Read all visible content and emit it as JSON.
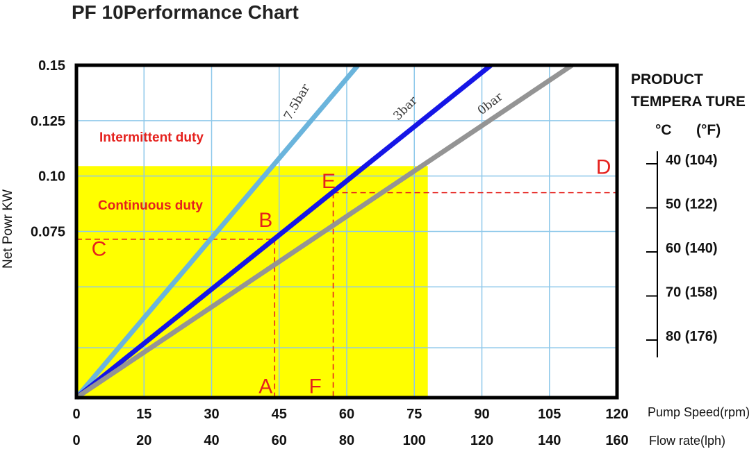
{
  "chart_data": {
    "type": "line",
    "title": "PF 10Performance Chart",
    "ylabel": "Net Powr KW",
    "x_label": "Pump Speed(rpm)",
    "x2_label": "Flow rate(lph)",
    "xlim": [
      0,
      120
    ],
    "ylim": [
      0,
      0.15
    ],
    "x_ticks": [
      "0",
      "15",
      "30",
      "45",
      "60",
      "75",
      "90",
      "105",
      "120"
    ],
    "x2_ticks": [
      "0",
      "20",
      "40",
      "60",
      "80",
      "100",
      "120",
      "140",
      "160"
    ],
    "y_ticks": [
      {
        "label": "0.15",
        "value": 0.15
      },
      {
        "label": "0.125",
        "value": 0.125
      },
      {
        "label": "0.10",
        "value": 0.1
      },
      {
        "label": "0.075",
        "value": 0.075
      }
    ],
    "grid": true,
    "regions": {
      "continuous": {
        "label": "Continuous duty",
        "x_max": 78,
        "y_max": 0.1045,
        "color": "#ffff00"
      },
      "intermittent": {
        "label": "Intermittent duty"
      }
    },
    "series": [
      {
        "name": "7.5bar",
        "color": "#6ab4dc",
        "points": [
          [
            0,
            0
          ],
          [
            62.5,
            0.15
          ]
        ]
      },
      {
        "name": "3bar",
        "color": "#1515e6",
        "points": [
          [
            0,
            0
          ],
          [
            92,
            0.15
          ]
        ]
      },
      {
        "name": "0bar",
        "color": "#949494",
        "points": [
          [
            0,
            0
          ],
          [
            110,
            0.15
          ]
        ]
      }
    ],
    "guides": [
      {
        "from": [
          0,
          0.0715
        ],
        "to": [
          44,
          0.0715
        ]
      },
      {
        "from": [
          44,
          0.0715
        ],
        "to": [
          44,
          0
        ]
      },
      {
        "from": [
          57,
          0.0925
        ],
        "to": [
          120,
          0.0925
        ]
      },
      {
        "from": [
          57,
          0.0925
        ],
        "to": [
          57,
          0
        ]
      }
    ],
    "points": [
      {
        "label": "A",
        "x": 42,
        "y": 0.002
      },
      {
        "label": "B",
        "x": 42,
        "y": 0.077
      },
      {
        "label": "C",
        "x": 5,
        "y": 0.064
      },
      {
        "label": "D",
        "x": 117,
        "y": 0.101
      },
      {
        "label": "E",
        "x": 56,
        "y": 0.0945
      },
      {
        "label": "F",
        "x": 53,
        "y": 0.002
      }
    ],
    "temperature_scale": {
      "title_lines": [
        "PRODUCT",
        "TEMPERA   TURE"
      ],
      "unit_c": "°C",
      "unit_f": "(°F)",
      "ticks": [
        "40 (104)",
        "50 (122)",
        "60 (140)",
        "70 (158)",
        "80 (176)"
      ]
    }
  }
}
